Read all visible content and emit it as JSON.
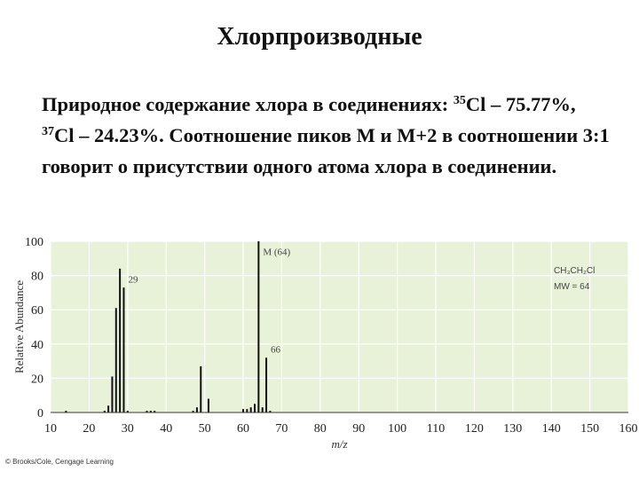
{
  "slide": {
    "title": "Хлорпроизводные",
    "paragraph": {
      "part1": "Природное содержание хлора в соединениях: ",
      "iso1_mass": "35",
      "iso1_rest": "Cl – 75.77%, ",
      "iso2_mass": "37",
      "iso2_rest": "Cl – 24.23%. Соотношение пиков M и M+2 в соотношении 3:1 говорит о  присутствии одного атома хлора в соединении."
    },
    "credit": "© Brooks/Cole, Cengage Learning"
  },
  "colors": {
    "plot_bg": "#e8f2d8",
    "bar": "#111111",
    "text": "#111111",
    "annot": "#444444"
  },
  "chart_data": {
    "type": "bar",
    "xlabel": "m/z",
    "ylabel": "Relative Abundance",
    "xlim": [
      10,
      160
    ],
    "ylim": [
      0,
      100
    ],
    "xticks": [
      10,
      20,
      30,
      40,
      50,
      60,
      70,
      80,
      90,
      100,
      110,
      120,
      130,
      140,
      150,
      160
    ],
    "yticks": [
      0,
      20,
      40,
      60,
      80,
      100
    ],
    "grid": true,
    "peaks": [
      {
        "x": 14,
        "y": 1
      },
      {
        "x": 24,
        "y": 1
      },
      {
        "x": 25,
        "y": 4
      },
      {
        "x": 26,
        "y": 21
      },
      {
        "x": 27,
        "y": 61
      },
      {
        "x": 28,
        "y": 84
      },
      {
        "x": 29,
        "y": 73
      },
      {
        "x": 30,
        "y": 1
      },
      {
        "x": 35,
        "y": 1
      },
      {
        "x": 36,
        "y": 1
      },
      {
        "x": 37,
        "y": 1
      },
      {
        "x": 47,
        "y": 1
      },
      {
        "x": 48,
        "y": 3
      },
      {
        "x": 49,
        "y": 27
      },
      {
        "x": 51,
        "y": 8
      },
      {
        "x": 60,
        "y": 2
      },
      {
        "x": 61,
        "y": 2
      },
      {
        "x": 62,
        "y": 3
      },
      {
        "x": 63,
        "y": 5
      },
      {
        "x": 64,
        "y": 100
      },
      {
        "x": 65,
        "y": 3
      },
      {
        "x": 66,
        "y": 32
      },
      {
        "x": 67,
        "y": 1
      }
    ],
    "annotations": [
      {
        "text": "29",
        "x": 29,
        "y": 76
      },
      {
        "text": "M (64)",
        "x": 64,
        "y": 92
      },
      {
        "text": "66",
        "x": 66,
        "y": 35
      }
    ],
    "compound": {
      "formula": "CH₃CH₂Cl",
      "mw": "MW = 64"
    }
  }
}
